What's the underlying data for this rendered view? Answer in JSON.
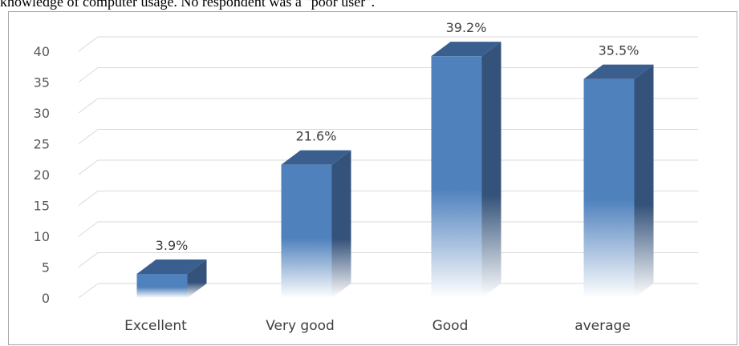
{
  "caption": "knowledge of computer usage. No respondent was a \"poor user\".",
  "chart_data": {
    "type": "bar",
    "categories": [
      "Excellent",
      "Very good",
      "Good",
      "average"
    ],
    "values": [
      3.9,
      21.6,
      39.2,
      35.5
    ],
    "data_labels": [
      "3.9%",
      "21.6%",
      "39.2%",
      "35.5%"
    ],
    "ylim": [
      0,
      40
    ],
    "yticks": [
      0,
      5,
      10,
      15,
      20,
      25,
      30,
      35,
      40
    ],
    "title": "",
    "xlabel": "",
    "ylabel": "",
    "grid": true,
    "legend": "none",
    "bar_color": "#4f81bd",
    "bar_side_color": "#34527a",
    "bar_top_color": "#3a5f8f",
    "grid_color": "#d9d9d9"
  }
}
